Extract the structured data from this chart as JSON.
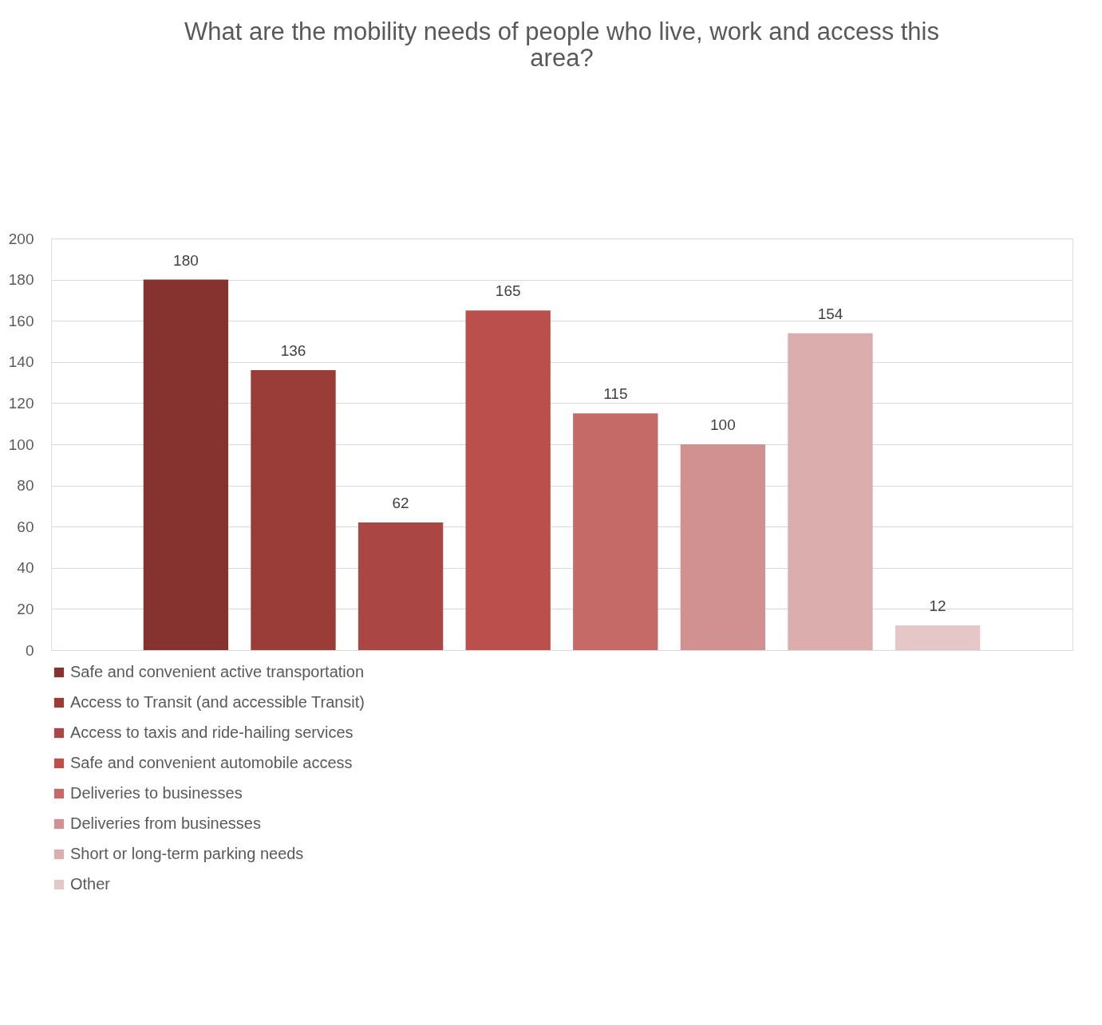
{
  "chart_data": {
    "type": "bar",
    "title": "What are the mobility needs of people who live, work and access this area?",
    "categories": [
      null
    ],
    "series": [
      {
        "name": "Safe and convenient active transportation",
        "color": "#86332f",
        "values": [
          180
        ]
      },
      {
        "name": "Access to Transit (and accessible Transit)",
        "color": "#9a3c38",
        "values": [
          136
        ]
      },
      {
        "name": "Access to taxis and ride-hailing services",
        "color": "#aa4744",
        "values": [
          62
        ]
      },
      {
        "name": "Safe and convenient automobile access",
        "color": "#bb4f4c",
        "values": [
          165
        ]
      },
      {
        "name": "Deliveries to businesses",
        "color": "#c56a67",
        "values": [
          115
        ]
      },
      {
        "name": "Deliveries from businesses",
        "color": "#d09190",
        "values": [
          100
        ]
      },
      {
        "name": "Short or long-term parking needs",
        "color": "#dcadad",
        "values": [
          154
        ]
      },
      {
        "name": "Other",
        "color": "#e6c7c7",
        "values": [
          12
        ]
      }
    ],
    "ylim": [
      0,
      200
    ],
    "yticks": [
      0,
      20,
      40,
      60,
      80,
      100,
      120,
      140,
      160,
      180,
      200
    ],
    "grid": "y",
    "legend": "bottom",
    "data_labels": true
  }
}
